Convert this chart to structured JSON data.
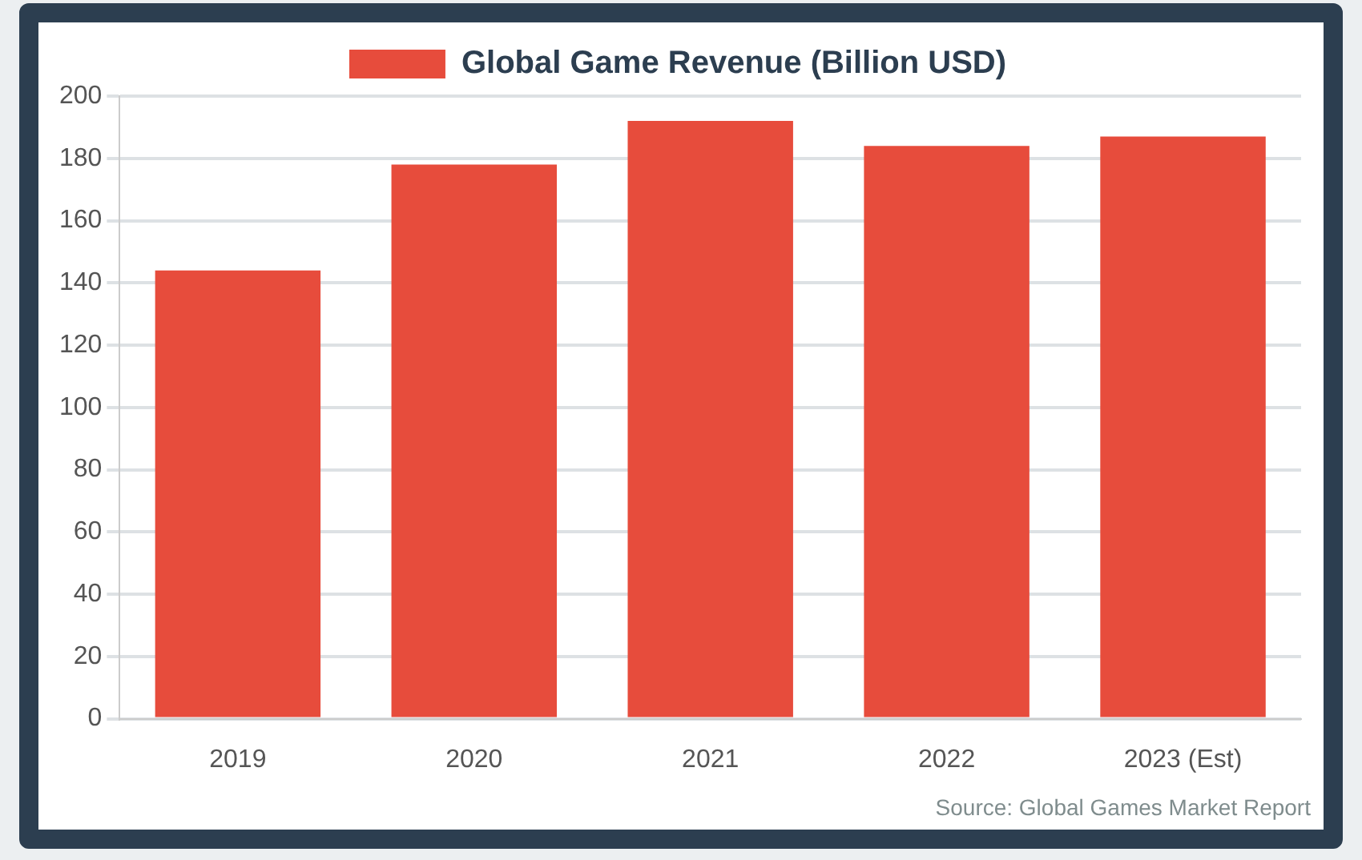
{
  "chart_data": {
    "type": "bar",
    "categories": [
      "2019",
      "2020",
      "2021",
      "2022",
      "2023 (Est)"
    ],
    "series": [
      {
        "name": "Global Game Revenue (Billion USD)",
        "color": "#e74c3c",
        "values": [
          144,
          178,
          192,
          184,
          187
        ]
      }
    ],
    "ylim": [
      0,
      200
    ],
    "yticks": [
      0,
      20,
      40,
      60,
      80,
      100,
      120,
      140,
      160,
      180,
      200
    ],
    "grid": "y",
    "legend": "top",
    "annotations": [
      "Source: Global Games Market Report"
    ]
  }
}
